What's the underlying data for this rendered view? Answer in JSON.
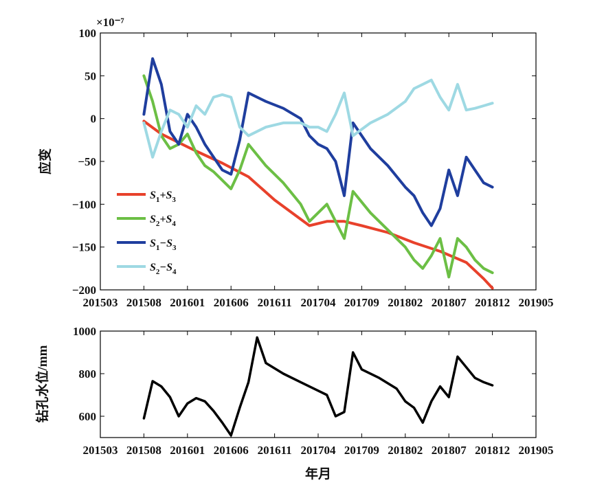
{
  "chart_data": [
    {
      "type": "line",
      "exponent_label": "×10⁻⁷",
      "ylabel": "应变",
      "xlabel": "",
      "ylim": [
        -200,
        100
      ],
      "xlim": [
        "201503",
        "201905"
      ],
      "x_ticks": [
        "201503",
        "201508",
        "201601",
        "201606",
        "201611",
        "201704",
        "201709",
        "201802",
        "201807",
        "201812",
        "201905"
      ],
      "y_ticks": [
        100,
        50,
        0,
        -50,
        -100,
        -150,
        -200
      ],
      "grid": false,
      "legend_position": "left",
      "series": [
        {
          "name": "S1+S3",
          "legend_parts": [
            "S",
            "1",
            "+S",
            "3"
          ],
          "color": "#e8412b",
          "x": [
            "201508",
            "201510",
            "201512",
            "201602",
            "201605",
            "201608",
            "201611",
            "201703",
            "201705",
            "201707",
            "201709",
            "201712",
            "201803",
            "201806",
            "201809",
            "201811",
            "201812"
          ],
          "y": [
            -3,
            -18,
            -28,
            -38,
            -52,
            -68,
            -95,
            -125,
            -120,
            -120,
            -125,
            -133,
            -145,
            -155,
            -168,
            -187,
            -198
          ]
        },
        {
          "name": "S2+S4",
          "legend_parts": [
            "S",
            "2",
            "+S",
            "4"
          ],
          "color": "#6cbf45",
          "x": [
            "201508",
            "201509",
            "201510",
            "201511",
            "201512",
            "201601",
            "201602",
            "201603",
            "201604",
            "201605",
            "201606",
            "201607",
            "201608",
            "201610",
            "201612",
            "201702",
            "201703",
            "201704",
            "201705",
            "201706",
            "201707",
            "201708",
            "201710",
            "201712",
            "201802",
            "201803",
            "201804",
            "201805",
            "201806",
            "201807",
            "201808",
            "201809",
            "201810",
            "201811",
            "201812"
          ],
          "y": [
            50,
            20,
            -20,
            -35,
            -30,
            -18,
            -40,
            -55,
            -62,
            -72,
            -82,
            -60,
            -30,
            -55,
            -75,
            -100,
            -120,
            -110,
            -100,
            -120,
            -140,
            -85,
            -110,
            -130,
            -150,
            -165,
            -175,
            -160,
            -140,
            -185,
            -140,
            -150,
            -165,
            -175,
            -180
          ]
        },
        {
          "name": "S1-S3",
          "legend_parts": [
            "S",
            "1",
            "−S",
            "3"
          ],
          "color": "#1f3e9e",
          "x": [
            "201508",
            "201509",
            "201510",
            "201511",
            "201512",
            "201601",
            "201602",
            "201603",
            "201604",
            "201605",
            "201606",
            "201607",
            "201608",
            "201610",
            "201612",
            "201702",
            "201703",
            "201704",
            "201705",
            "201706",
            "201707",
            "201708",
            "201710",
            "201712",
            "201802",
            "201803",
            "201804",
            "201805",
            "201806",
            "201807",
            "201808",
            "201809",
            "201810",
            "201811",
            "201812"
          ],
          "y": [
            5,
            70,
            40,
            -15,
            -30,
            5,
            -10,
            -30,
            -45,
            -60,
            -65,
            -25,
            30,
            20,
            12,
            0,
            -20,
            -30,
            -35,
            -50,
            -90,
            -5,
            -35,
            -55,
            -80,
            -90,
            -110,
            -125,
            -105,
            -60,
            -90,
            -45,
            -60,
            -75,
            -80
          ]
        },
        {
          "name": "S2-S4",
          "legend_parts": [
            "S",
            "2",
            "−S",
            "4"
          ],
          "color": "#9ed9e3",
          "x": [
            "201508",
            "201509",
            "201510",
            "201511",
            "201512",
            "201601",
            "201602",
            "201603",
            "201604",
            "201605",
            "201606",
            "201607",
            "201608",
            "201610",
            "201612",
            "201702",
            "201703",
            "201704",
            "201705",
            "201706",
            "201707",
            "201708",
            "201710",
            "201712",
            "201802",
            "201803",
            "201804",
            "201805",
            "201806",
            "201807",
            "201808",
            "201809",
            "201810",
            "201811",
            "201812"
          ],
          "y": [
            -5,
            -45,
            -15,
            10,
            5,
            -10,
            15,
            5,
            25,
            28,
            25,
            -10,
            -20,
            -10,
            -5,
            -5,
            -10,
            -10,
            -15,
            5,
            30,
            -20,
            -5,
            5,
            20,
            35,
            40,
            45,
            25,
            10,
            40,
            10,
            12,
            15,
            18
          ]
        }
      ]
    },
    {
      "type": "line",
      "ylabel": "钻孔水位/mm",
      "xlabel": "年月",
      "ylim": [
        500,
        1000
      ],
      "xlim": [
        "201503",
        "201905"
      ],
      "x_ticks": [
        "201503",
        "201508",
        "201601",
        "201606",
        "201611",
        "201704",
        "201709",
        "201802",
        "201807",
        "201812",
        "201905"
      ],
      "y_ticks": [
        1000,
        800,
        600
      ],
      "grid": false,
      "series": [
        {
          "color": "#000000",
          "x": [
            "201508",
            "201509",
            "201510",
            "201511",
            "201512",
            "201601",
            "201602",
            "201603",
            "201604",
            "201605",
            "201606",
            "201607",
            "201608",
            "201609",
            "201610",
            "201612",
            "201702",
            "201704",
            "201705",
            "201706",
            "201707",
            "201708",
            "201709",
            "201711",
            "201801",
            "201802",
            "201803",
            "201804",
            "201805",
            "201806",
            "201807",
            "201808",
            "201809",
            "201810",
            "201811",
            "201812"
          ],
          "y": [
            590,
            765,
            740,
            690,
            600,
            660,
            685,
            670,
            625,
            570,
            510,
            640,
            760,
            970,
            850,
            800,
            760,
            720,
            700,
            600,
            620,
            900,
            820,
            780,
            730,
            670,
            640,
            570,
            670,
            740,
            690,
            880,
            830,
            780,
            760,
            745
          ]
        }
      ]
    }
  ]
}
